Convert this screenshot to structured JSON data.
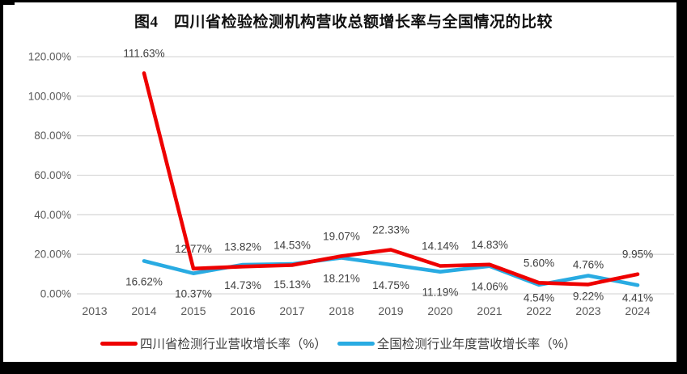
{
  "title": "图4　四川省检验检测机构营收总额增长率与全国情况的比较",
  "colors": {
    "sichuan_line": "#ee0000",
    "national_line": "#29abe2",
    "grid": "#d9d9d9",
    "axis_text": "#595959",
    "label_text": "#404040",
    "title_text": "#111111",
    "border": "#000000"
  },
  "chart_data": {
    "type": "line",
    "title": "图4　四川省检验检测机构营收总额增长率与全国情况的比较",
    "categories": [
      "2013",
      "2014",
      "2015",
      "2016",
      "2017",
      "2018",
      "2019",
      "2020",
      "2021",
      "2022",
      "2023",
      "2024"
    ],
    "series": [
      {
        "name": "四川省检测行业营收增长率（%）",
        "color": "#ee0000",
        "values": [
          null,
          111.63,
          12.77,
          13.82,
          14.53,
          19.07,
          22.33,
          14.14,
          14.83,
          5.6,
          4.76,
          9.95
        ]
      },
      {
        "name": "全国检测行业年度营收增长率（%）",
        "color": "#29abe2",
        "values": [
          null,
          16.62,
          10.37,
          14.73,
          15.13,
          18.21,
          14.75,
          11.19,
          14.06,
          4.54,
          9.22,
          4.41
        ]
      }
    ],
    "ylim": [
      0,
      120
    ],
    "y_ticks": [
      "0.00%",
      "20.00%",
      "40.00%",
      "60.00%",
      "80.00%",
      "100.00%",
      "120.00%"
    ],
    "xlabel": "",
    "ylabel": "",
    "grid": true,
    "data_labels": true,
    "legend_position": "bottom"
  }
}
